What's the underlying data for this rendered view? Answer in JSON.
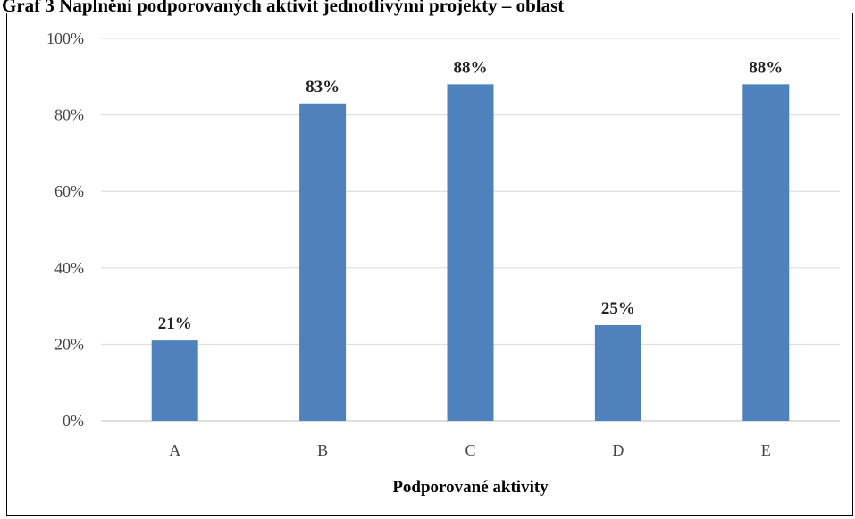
{
  "page": {
    "title": "Graf 3 Naplnění podporovaných aktivit jednotlivými projekty – oblast"
  },
  "chart_data": {
    "type": "bar",
    "categories": [
      "A",
      "B",
      "C",
      "D",
      "E"
    ],
    "values": [
      21,
      83,
      88,
      25,
      88
    ],
    "value_labels": [
      "21%",
      "83%",
      "88%",
      "25%",
      "88%"
    ],
    "y_ticks": [
      "0%",
      "20%",
      "40%",
      "60%",
      "80%",
      "100%"
    ],
    "ylim": [
      0,
      100
    ],
    "xlabel": "Podporované aktivity",
    "ylabel": "",
    "grid": true,
    "bar_color": "#4f81bd",
    "grid_color": "#d9d9d9"
  }
}
